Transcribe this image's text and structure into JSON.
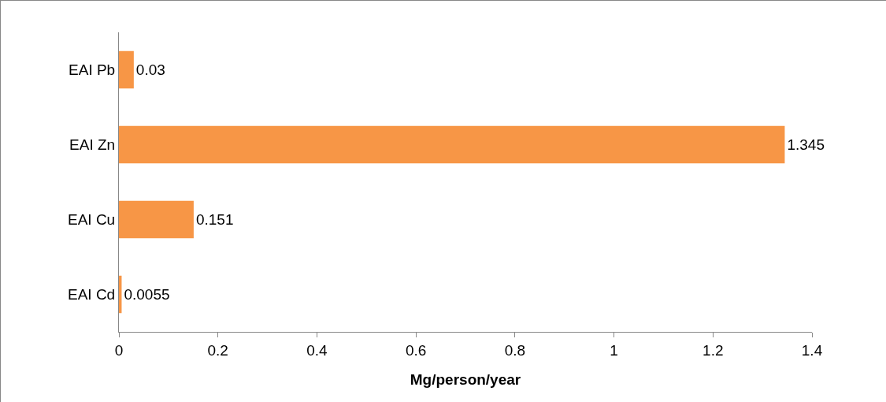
{
  "chart_data": {
    "type": "bar",
    "orientation": "horizontal",
    "categories": [
      "EAI Pb",
      "EAI Zn",
      "EAI Cu",
      "EAI Cd"
    ],
    "values": [
      0.03,
      1.345,
      0.151,
      0.0055
    ],
    "color": "#f79646",
    "data_labels": true,
    "xlabel": "Mg/person/year",
    "xlim": [
      0,
      1.4
    ],
    "xticks": [
      0,
      0.2,
      0.4,
      0.6,
      0.8,
      1,
      1.2,
      1.4
    ]
  }
}
